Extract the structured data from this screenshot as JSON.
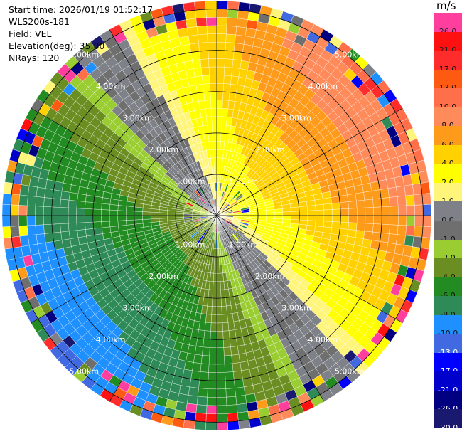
{
  "info": {
    "start_time": "Start time: 2026/01/19 01:52:17",
    "station": "WLS200s-181",
    "field": "Field: VEL",
    "elevation": "Elevation(deg): 35.00",
    "nrays": "NRays: 120"
  },
  "colorbar": {
    "title": "m/s",
    "levels": [
      {
        "label": "26.0",
        "color": "#ff3e9e"
      },
      {
        "label": "21.0",
        "color": "#ff1111"
      },
      {
        "label": "17.0",
        "color": "#ff2c2c"
      },
      {
        "label": "13.0",
        "color": "#ff5a12"
      },
      {
        "label": "10.0",
        "color": "#ff6f4a"
      },
      {
        "label": "8.0",
        "color": "#ff8a5a"
      },
      {
        "label": "6.0",
        "color": "#ff9b1a"
      },
      {
        "label": "4.0",
        "color": "#ffd100"
      },
      {
        "label": "2.0",
        "color": "#ffff00"
      },
      {
        "label": "1.0",
        "color": "#fff57a"
      },
      {
        "label": "0.0",
        "color": "#7e8288"
      },
      {
        "label": "-1.0",
        "color": "#6f6f6f"
      },
      {
        "label": "-2.0",
        "color": "#9acd32"
      },
      {
        "label": "-4.0",
        "color": "#6b8e23"
      },
      {
        "label": "-6.0",
        "color": "#228b22"
      },
      {
        "label": "-8.0",
        "color": "#2e8b57"
      },
      {
        "label": "-10.0",
        "color": "#1e90ff"
      },
      {
        "label": "-13.0",
        "color": "#4169e1"
      },
      {
        "label": "-17.0",
        "color": "#0000ff"
      },
      {
        "label": "-21.0",
        "color": "#0000cd"
      },
      {
        "label": "-26.0",
        "color": "#000080"
      },
      {
        "label": "-30.0",
        "color": "#191970"
      }
    ]
  },
  "chart_data": {
    "type": "heatmap",
    "projection": "polar (PPI)",
    "nrays": 120,
    "range_rings_km": [
      1.0,
      2.0,
      3.0,
      4.0,
      5.0
    ],
    "range_labels": [
      "1.00km",
      "2.00km",
      "3.00km",
      "4.00km",
      "5.00km"
    ],
    "max_range_km": 5.2,
    "azimuth_lines_deg": [
      0,
      30,
      60,
      90,
      120,
      150,
      180,
      210,
      240,
      270,
      300,
      330
    ],
    "velocity_zones": [
      {
        "description": "near-field mixed",
        "range_km": [
          0,
          0.8
        ]
      },
      {
        "description": "southwest approaching (-2 to -8 m/s)",
        "range_km": [
          0.8,
          4.5
        ],
        "azimuth_deg": [
          150,
          330
        ]
      },
      {
        "description": "northeast receding (2 to 10 m/s)",
        "range_km": [
          0.8,
          4.5
        ],
        "azimuth_deg": [
          330,
          150
        ]
      },
      {
        "description": "noisy outer ring",
        "range_km": [
          4.5,
          5.2
        ]
      }
    ]
  }
}
